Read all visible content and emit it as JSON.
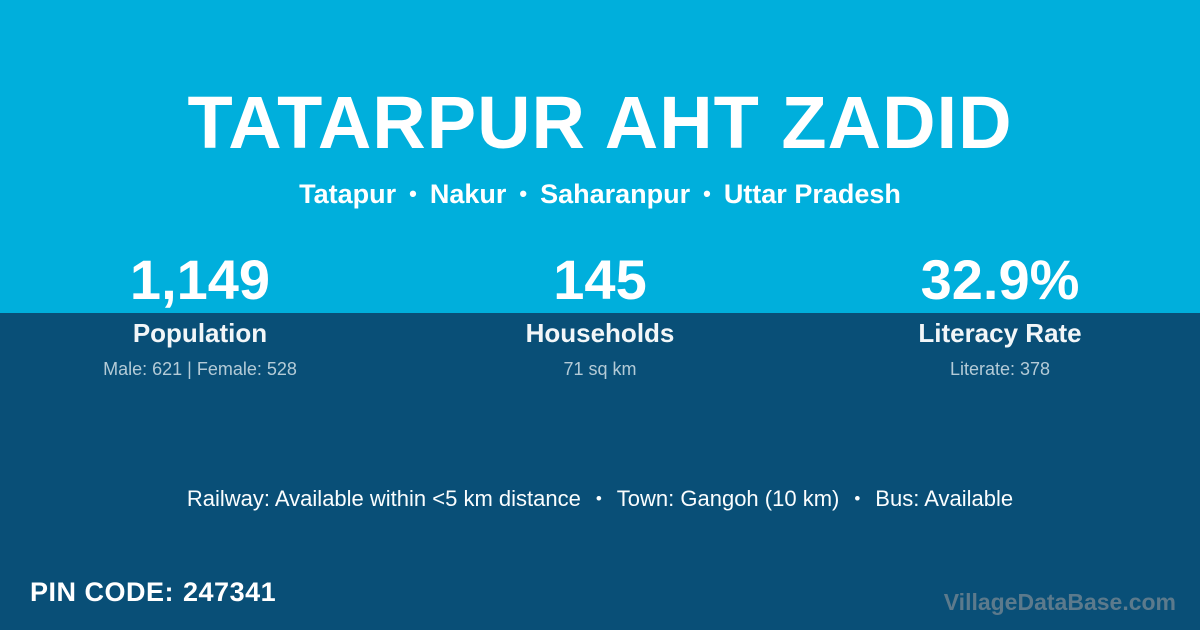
{
  "theme": {
    "top_background": "#00AFDC",
    "bottom_background": "#094F77",
    "text_color": "#FFFFFF",
    "muted_text_color": "#B4CBD7",
    "watermark_color": "#5C7A8C"
  },
  "header": {
    "title": "TATARPUR AHT ZADID",
    "separator": "•",
    "location": [
      "Tatapur",
      "Nakur",
      "Saharanpur",
      "Uttar Pradesh"
    ]
  },
  "stats": [
    {
      "value": "1,149",
      "label": "Population",
      "detail": "Male: 621 | Female: 528"
    },
    {
      "value": "145",
      "label": "Households",
      "detail": "71 sq km"
    },
    {
      "value": "32.9%",
      "label": "Literacy Rate",
      "detail": "Literate: 378"
    }
  ],
  "amenities": {
    "separator": "•",
    "items": [
      "Railway: Available within <5 km distance",
      "Town: Gangoh (10 km)",
      "Bus: Available"
    ]
  },
  "footer": {
    "pin_label": "PIN CODE:",
    "pin_value": "247341",
    "watermark": "VillageDataBase.com"
  }
}
